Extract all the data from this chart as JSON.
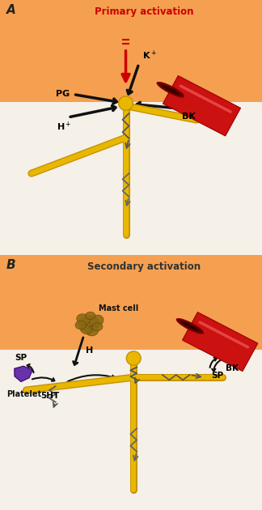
{
  "panel_A_title": "Primary activation",
  "panel_B_title": "Secondary activation",
  "label_A": "A",
  "label_B": "B",
  "bg_color": "#f5f0e8",
  "skin_color_light": "#f5a050",
  "skin_color_dark": "#e07030",
  "nerve_color": "#e8b800",
  "nerve_dark": "#c89000",
  "blood_vessel_color": "#cc1111",
  "blood_vessel_dark": "#990000",
  "mast_cell_color": "#8B6914",
  "platelet_color": "#6633aa",
  "arrow_color": "#111111",
  "red_arrow_color": "#cc0000",
  "label_color_A": "#cc0000",
  "label_color_B": "#333333"
}
